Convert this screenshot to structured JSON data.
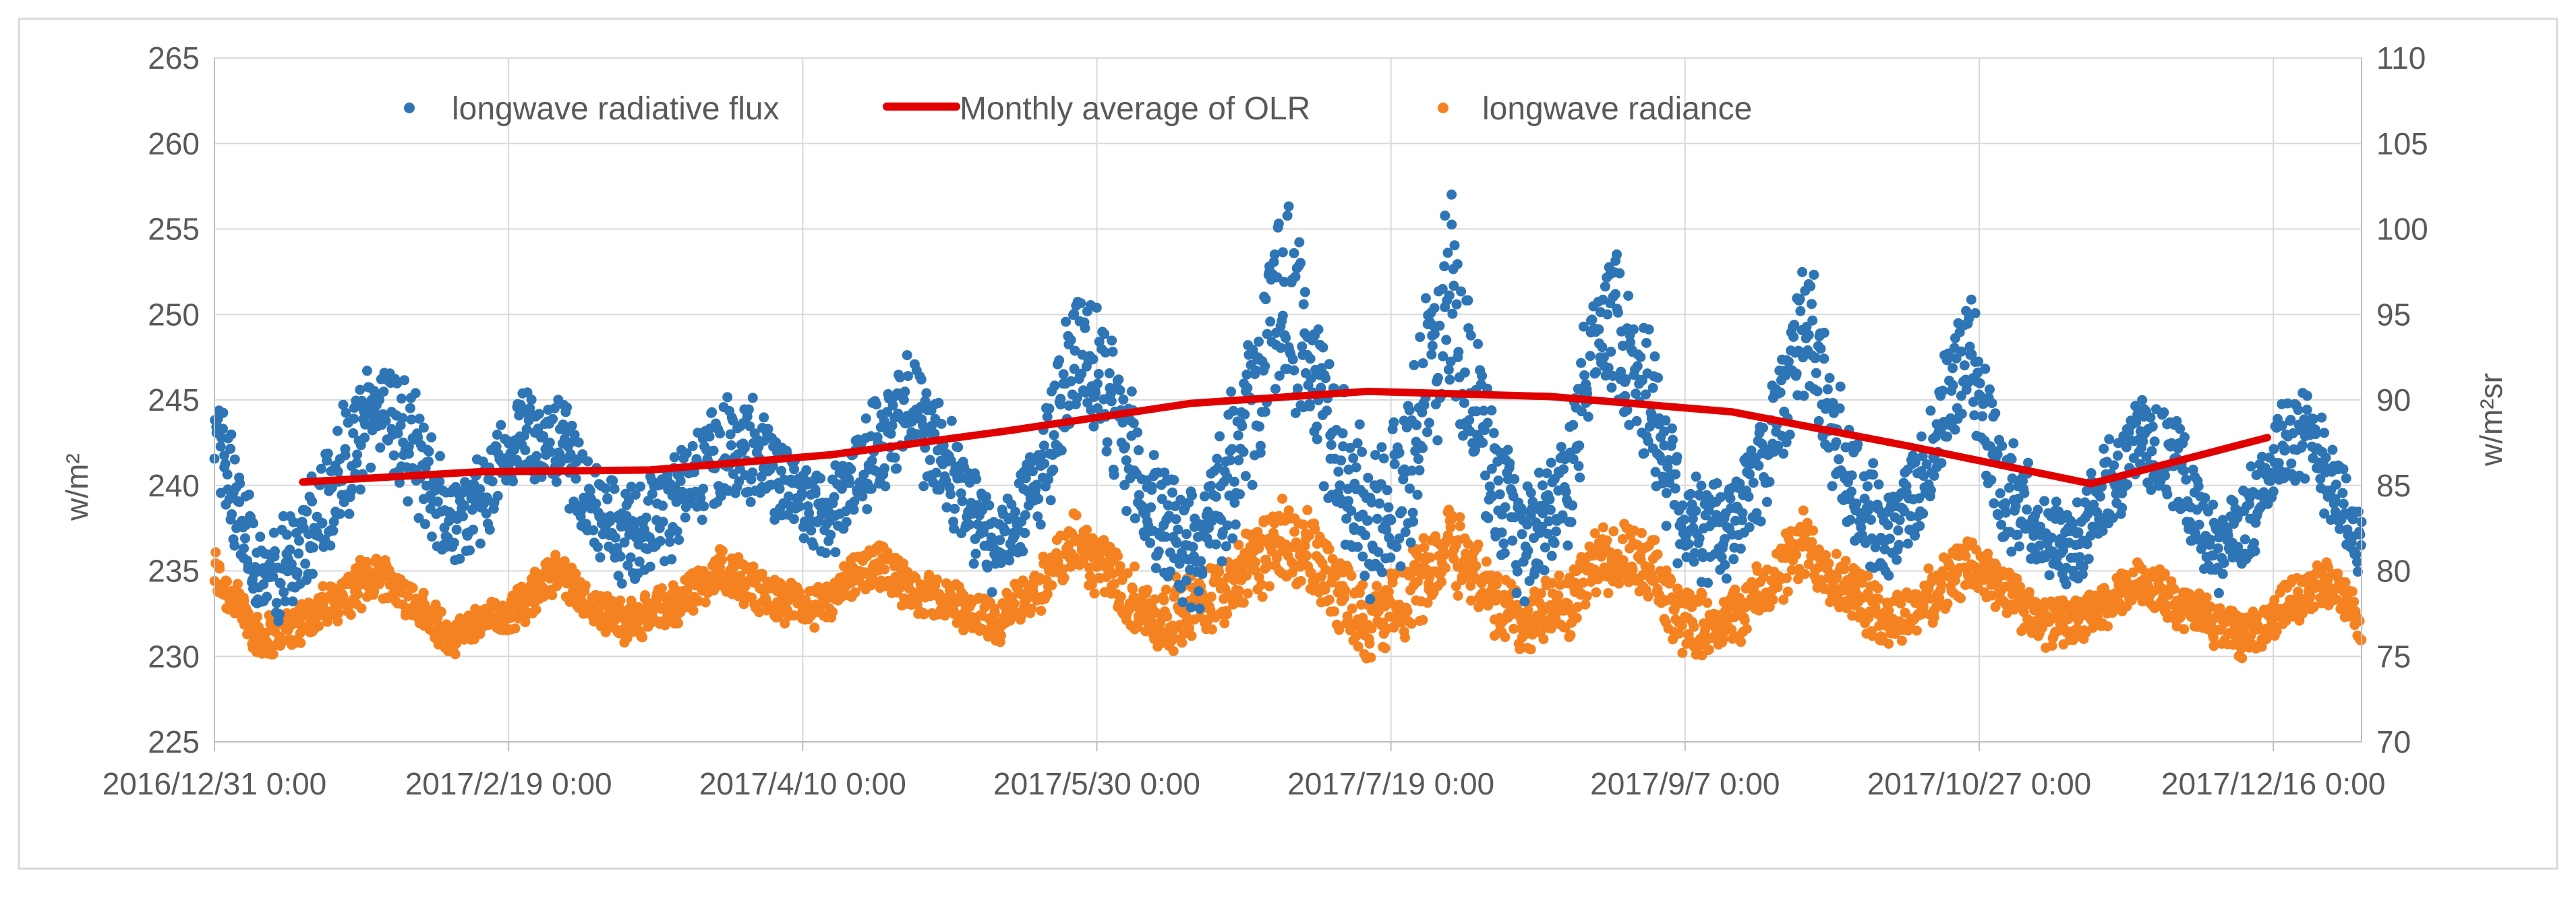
{
  "chart_data": {
    "type": "scatter",
    "title": "",
    "xlabel": "",
    "y_left_label": "w/m²",
    "y_right_label": "w/m²sr",
    "y_left_range": [
      225,
      265
    ],
    "y_left_ticks": [
      "225",
      "230",
      "235",
      "240",
      "245",
      "250",
      "255",
      "260",
      "265"
    ],
    "y_right_range": [
      70,
      110
    ],
    "y_right_ticks": [
      "70",
      "75",
      "80",
      "85",
      "90",
      "95",
      "100",
      "105",
      "110"
    ],
    "x_range_days": [
      0,
      365
    ],
    "x_ticks": [
      {
        "day": 0,
        "label": "2016/12/31 0:00"
      },
      {
        "day": 50,
        "label": "2017/2/19 0:00"
      },
      {
        "day": 100,
        "label": "2017/4/10 0:00"
      },
      {
        "day": 150,
        "label": "2017/5/30 0:00"
      },
      {
        "day": 200,
        "label": "2017/7/19 0:00"
      },
      {
        "day": 250,
        "label": "2017/9/7 0:00"
      },
      {
        "day": 300,
        "label": "2017/10/27 0:00"
      },
      {
        "day": 350,
        "label": "2017/12/16 0:00"
      }
    ],
    "legend_position": "top",
    "series": [
      {
        "name": "longwave radiative flux",
        "kind": "scatter",
        "axis": "left",
        "color": "#2E75B6",
        "envelope_days": [
          0,
          3,
          8,
          14,
          20,
          28,
          34,
          40,
          46,
          52,
          58,
          64,
          70,
          78,
          86,
          92,
          98,
          104,
          112,
          118,
          126,
          133,
          140,
          146,
          152,
          160,
          167,
          175,
          182,
          189,
          196,
          202,
          210,
          216,
          222,
          230,
          236,
          244,
          250,
          257,
          264,
          270,
          278,
          284,
          290,
          298,
          304,
          310,
          316,
          322,
          328,
          334,
          340,
          346,
          352,
          358,
          363,
          365
        ],
        "envelope_center": [
          244,
          240,
          234,
          236,
          240,
          245,
          242,
          238,
          239,
          243,
          243,
          239,
          237,
          239,
          242,
          242,
          240,
          238,
          242,
          245,
          240,
          236,
          240,
          248,
          245,
          238,
          236,
          243,
          252,
          244,
          238,
          240,
          252,
          242,
          236,
          240,
          251,
          245,
          238,
          237,
          242,
          250,
          240,
          237,
          240,
          248,
          240,
          238,
          236,
          240,
          243,
          241,
          236,
          238,
          243,
          242,
          238,
          236
        ],
        "envelope_halfwidth": [
          3,
          4,
          3,
          4,
          4,
          3.5,
          4,
          3,
          3,
          3.5,
          3.5,
          3,
          3,
          3.5,
          3.5,
          3.5,
          3,
          3,
          3.5,
          4,
          4,
          3,
          3.5,
          4.5,
          4.5,
          4,
          4,
          5,
          6.5,
          5.5,
          5,
          5.5,
          7,
          5,
          4,
          4,
          5,
          5,
          4,
          3.5,
          4,
          5,
          4,
          3,
          3.5,
          4.5,
          4,
          3,
          3,
          3,
          3,
          3,
          3,
          3,
          3.5,
          3.5,
          3,
          3
        ]
      },
      {
        "name": "Monthly average of OLR",
        "kind": "line",
        "axis": "left",
        "color": "#E00000",
        "x_days": [
          15,
          45,
          74,
          105,
          135,
          166,
          196,
          227,
          258,
          288,
          319,
          349
        ],
        "values": [
          240.2,
          240.8,
          240.9,
          241.8,
          243.2,
          244.8,
          245.5,
          245.2,
          244.3,
          242.3,
          240.1,
          242.8
        ]
      },
      {
        "name": "longwave radiance",
        "kind": "scatter",
        "axis": "right",
        "color": "#F58220",
        "envelope_days": [
          0,
          3,
          8,
          14,
          20,
          28,
          34,
          40,
          46,
          52,
          58,
          64,
          70,
          78,
          86,
          92,
          98,
          104,
          112,
          118,
          126,
          133,
          140,
          146,
          152,
          160,
          167,
          175,
          182,
          189,
          196,
          202,
          210,
          216,
          222,
          230,
          236,
          244,
          250,
          257,
          264,
          270,
          278,
          284,
          290,
          298,
          304,
          310,
          316,
          322,
          328,
          334,
          340,
          346,
          352,
          358,
          363,
          365
        ],
        "envelope_center": [
          80,
          78.5,
          76,
          77,
          78,
          80,
          78,
          76,
          77,
          78,
          80,
          78,
          77,
          78,
          80,
          79,
          78,
          78,
          80.5,
          79,
          78,
          77,
          79,
          81.5,
          80,
          77,
          78,
          80,
          82,
          80,
          77,
          78,
          82,
          79,
          77,
          78,
          81,
          80,
          77,
          77,
          79,
          81.5,
          79,
          77,
          78,
          80.5,
          79,
          77,
          77,
          78,
          79.5,
          78,
          77,
          76,
          78,
          79.5,
          78,
          76
        ],
        "envelope_halfwidth": [
          1.8,
          1.6,
          1.5,
          1.5,
          1.5,
          1.5,
          1.5,
          1.3,
          1.3,
          1.4,
          1.4,
          1.3,
          1.3,
          1.5,
          1.5,
          1.5,
          1.4,
          1.4,
          1.6,
          1.6,
          1.5,
          1.5,
          1.8,
          2,
          2.2,
          2.2,
          2.4,
          2.6,
          3,
          2.8,
          2.6,
          2.6,
          3,
          2.6,
          2.2,
          2.2,
          2.4,
          2.4,
          2.2,
          2,
          2,
          2.4,
          2.2,
          1.8,
          1.8,
          2,
          1.8,
          1.6,
          1.5,
          1.5,
          1.5,
          1.5,
          1.5,
          1.5,
          1.5,
          1.6,
          1.5,
          1.5
        ]
      }
    ]
  }
}
